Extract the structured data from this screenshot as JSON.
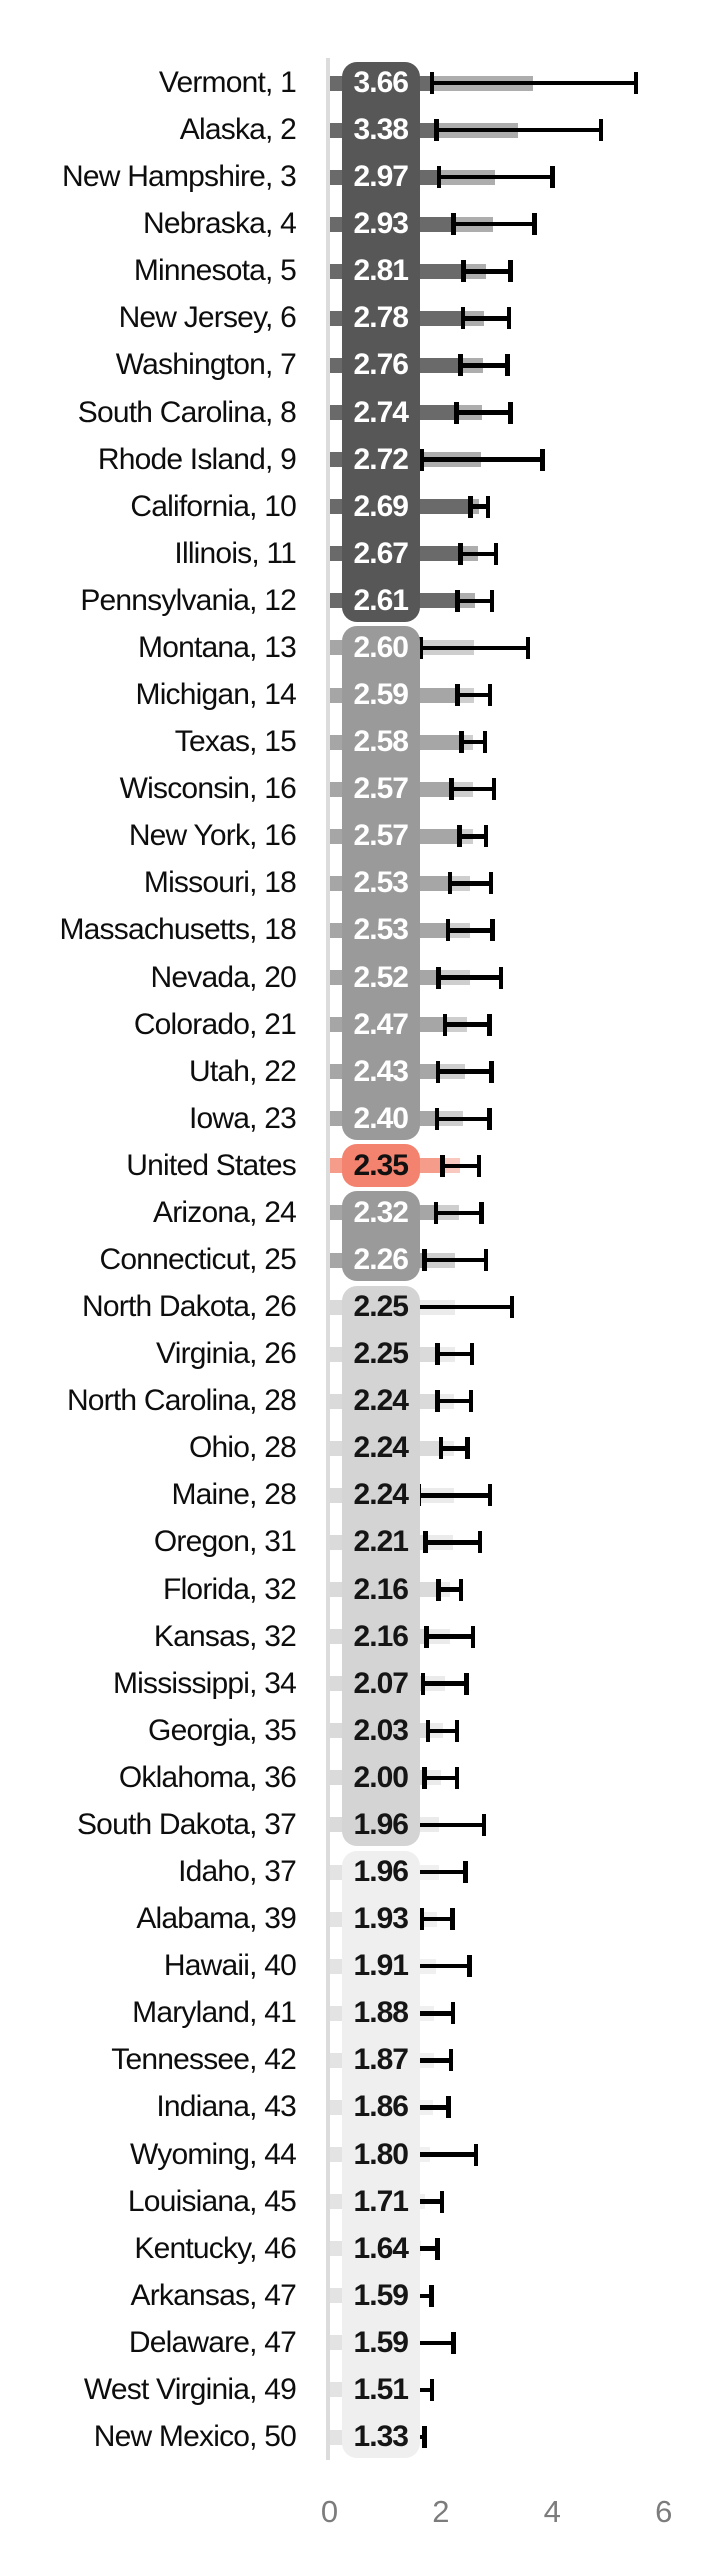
{
  "chart_data": {
    "type": "bar",
    "orientation": "horizontal",
    "title": "",
    "xlabel": "",
    "ylabel": "",
    "x_ticks": [
      "0",
      "2",
      "4",
      "6"
    ],
    "xlim": [
      0,
      7
    ],
    "grid": false,
    "legend": null,
    "note": "Horizontal bar chart of states ranked by value, with 95% confidence-interval error bars; value labels sit inside rounded group boxes shaded by group; United States reference row highlighted in red",
    "groups": [
      {
        "id": "top",
        "box_color": "#575757",
        "bar_color": "#6a6a6a",
        "text_color": "#ffffff"
      },
      {
        "id": "upper-mid",
        "box_color": "#9a9a9a",
        "bar_color": "#a6a6a6",
        "text_color": "#ffffff"
      },
      {
        "id": "us",
        "box_color": "#f3826e",
        "bar_color": "#f59c8b",
        "text_color": "#111111"
      },
      {
        "id": "lower-mid",
        "box_color": "#9a9a9a",
        "bar_color": "#a6a6a6",
        "text_color": "#ffffff"
      },
      {
        "id": "light",
        "box_color": "#d4d4d4",
        "bar_color": "#dadada",
        "text_color": "#151515"
      },
      {
        "id": "lightest",
        "box_color": "#efefef",
        "bar_color": "#e3e3e3",
        "text_color": "#151515"
      }
    ],
    "rows": [
      {
        "label": "Vermont, 1",
        "value": "3.66",
        "lo": 1.84,
        "hi": 5.5,
        "group": "top"
      },
      {
        "label": "Alaska, 2",
        "value": "3.38",
        "lo": 1.92,
        "hi": 4.87,
        "group": "top"
      },
      {
        "label": "New Hampshire, 3",
        "value": "2.97",
        "lo": 1.97,
        "hi": 4.0,
        "group": "top"
      },
      {
        "label": "Nebraska, 4",
        "value": "2.93",
        "lo": 2.23,
        "hi": 3.68,
        "group": "top"
      },
      {
        "label": "Minnesota, 5",
        "value": "2.81",
        "lo": 2.41,
        "hi": 3.25,
        "group": "top"
      },
      {
        "label": "New Jersey, 6",
        "value": "2.78",
        "lo": 2.4,
        "hi": 3.22,
        "group": "top"
      },
      {
        "label": "Washington, 7",
        "value": "2.76",
        "lo": 2.35,
        "hi": 3.2,
        "group": "top"
      },
      {
        "label": "South Carolina, 8",
        "value": "2.74",
        "lo": 2.28,
        "hi": 3.25,
        "group": "top"
      },
      {
        "label": "Rhode Island, 9",
        "value": "2.72",
        "lo": 1.66,
        "hi": 3.82,
        "group": "top"
      },
      {
        "label": "California, 10",
        "value": "2.69",
        "lo": 2.53,
        "hi": 2.85,
        "group": "top"
      },
      {
        "label": "Illinois, 11",
        "value": "2.67",
        "lo": 2.35,
        "hi": 2.99,
        "group": "top"
      },
      {
        "label": "Pennsylvania, 12",
        "value": "2.61",
        "lo": 2.3,
        "hi": 2.92,
        "group": "top"
      },
      {
        "label": "Montana, 13",
        "value": "2.60",
        "lo": 1.64,
        "hi": 3.56,
        "group": "upper-mid"
      },
      {
        "label": "Michigan, 14",
        "value": "2.59",
        "lo": 2.3,
        "hi": 2.88,
        "group": "upper-mid"
      },
      {
        "label": "Texas, 15",
        "value": "2.58",
        "lo": 2.37,
        "hi": 2.79,
        "group": "upper-mid"
      },
      {
        "label": "Wisconsin, 16",
        "value": "2.57",
        "lo": 2.19,
        "hi": 2.95,
        "group": "upper-mid"
      },
      {
        "label": "New York, 16",
        "value": "2.57",
        "lo": 2.33,
        "hi": 2.81,
        "group": "upper-mid"
      },
      {
        "label": "Missouri, 18",
        "value": "2.53",
        "lo": 2.16,
        "hi": 2.9,
        "group": "upper-mid"
      },
      {
        "label": "Massachusetts, 18",
        "value": "2.53",
        "lo": 2.13,
        "hi": 2.93,
        "group": "upper-mid"
      },
      {
        "label": "Nevada, 20",
        "value": "2.52",
        "lo": 1.96,
        "hi": 3.08,
        "group": "upper-mid"
      },
      {
        "label": "Colorado, 21",
        "value": "2.47",
        "lo": 2.07,
        "hi": 2.87,
        "group": "upper-mid"
      },
      {
        "label": "Utah, 22",
        "value": "2.43",
        "lo": 1.95,
        "hi": 2.91,
        "group": "upper-mid"
      },
      {
        "label": "Iowa, 23",
        "value": "2.40",
        "lo": 1.93,
        "hi": 2.87,
        "group": "upper-mid"
      },
      {
        "label": "United States",
        "value": "2.35",
        "lo": 2.03,
        "hi": 2.68,
        "group": "us"
      },
      {
        "label": "Arizona, 24",
        "value": "2.32",
        "lo": 1.91,
        "hi": 2.73,
        "group": "lower-mid"
      },
      {
        "label": "Connecticut, 25",
        "value": "2.26",
        "lo": 1.71,
        "hi": 2.81,
        "group": "lower-mid"
      },
      {
        "label": "North Dakota, 26",
        "value": "2.25",
        "lo": 1.22,
        "hi": 3.28,
        "group": "light"
      },
      {
        "label": "Virginia, 26",
        "value": "2.25",
        "lo": 1.94,
        "hi": 2.56,
        "group": "light"
      },
      {
        "label": "North Carolina, 28",
        "value": "2.24",
        "lo": 1.94,
        "hi": 2.54,
        "group": "light"
      },
      {
        "label": "Ohio, 28",
        "value": "2.24",
        "lo": 2.0,
        "hi": 2.48,
        "group": "light"
      },
      {
        "label": "Maine, 28",
        "value": "2.24",
        "lo": 1.6,
        "hi": 2.88,
        "group": "light"
      },
      {
        "label": "Oregon, 31",
        "value": "2.21",
        "lo": 1.72,
        "hi": 2.7,
        "group": "light"
      },
      {
        "label": "Florida, 32",
        "value": "2.16",
        "lo": 1.96,
        "hi": 2.36,
        "group": "light"
      },
      {
        "label": "Kansas, 32",
        "value": "2.16",
        "lo": 1.74,
        "hi": 2.58,
        "group": "light"
      },
      {
        "label": "Mississippi, 34",
        "value": "2.07",
        "lo": 1.68,
        "hi": 2.46,
        "group": "light"
      },
      {
        "label": "Georgia, 35",
        "value": "2.03",
        "lo": 1.77,
        "hi": 2.29,
        "group": "light"
      },
      {
        "label": "Oklahoma, 36",
        "value": "2.00",
        "lo": 1.71,
        "hi": 2.29,
        "group": "light"
      },
      {
        "label": "South Dakota, 37",
        "value": "1.96",
        "lo": 1.15,
        "hi": 2.77,
        "group": "light"
      },
      {
        "label": "Idaho, 37",
        "value": "1.96",
        "lo": 1.48,
        "hi": 2.44,
        "group": "lightest"
      },
      {
        "label": "Alabama, 39",
        "value": "1.93",
        "lo": 1.65,
        "hi": 2.21,
        "group": "lightest"
      },
      {
        "label": "Hawaii, 40",
        "value": "1.91",
        "lo": 1.31,
        "hi": 2.51,
        "group": "lightest"
      },
      {
        "label": "Maryland, 41",
        "value": "1.88",
        "lo": 1.54,
        "hi": 2.22,
        "group": "lightest"
      },
      {
        "label": "Tennessee, 42",
        "value": "1.87",
        "lo": 1.56,
        "hi": 2.18,
        "group": "lightest"
      },
      {
        "label": "Indiana, 43",
        "value": "1.86",
        "lo": 1.58,
        "hi": 2.14,
        "group": "lightest"
      },
      {
        "label": "Wyoming, 44",
        "value": "1.80",
        "lo": 0.97,
        "hi": 2.63,
        "group": "lightest"
      },
      {
        "label": "Louisiana, 45",
        "value": "1.71",
        "lo": 1.4,
        "hi": 2.02,
        "group": "lightest"
      },
      {
        "label": "Kentucky, 46",
        "value": "1.64",
        "lo": 1.34,
        "hi": 1.94,
        "group": "lightest"
      },
      {
        "label": "Arkansas, 47",
        "value": "1.59",
        "lo": 1.35,
        "hi": 1.83,
        "group": "lightest"
      },
      {
        "label": "Delaware, 47",
        "value": "1.59",
        "lo": 0.95,
        "hi": 2.23,
        "group": "lightest"
      },
      {
        "label": "West Virginia, 49",
        "value": "1.51",
        "lo": 1.18,
        "hi": 1.84,
        "group": "lightest"
      },
      {
        "label": "New Mexico, 50",
        "value": "1.33",
        "lo": 0.95,
        "hi": 1.71,
        "group": "lightest"
      }
    ],
    "colors": {
      "background": "#ffffff",
      "axis_line": "#dcdcdc",
      "error_bar": "#000000",
      "tick_label": "#7c7c7c",
      "row_label": "#0d0d0d",
      "us_accent": "#f3826e"
    }
  }
}
